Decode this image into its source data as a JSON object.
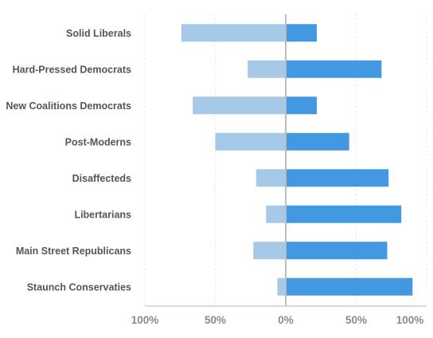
{
  "chart_data": {
    "type": "bar",
    "orientation": "horizontal-diverging",
    "categories": [
      "Solid Liberals",
      "Hard-Pressed Democrats",
      "New Coalitions Democrats",
      "Post-Moderns",
      "Disaffecteds",
      "Libertarians",
      "Main Street Republicans",
      "Staunch Conservaties"
    ],
    "series": [
      {
        "values": [
          -74,
          -27,
          -66,
          -50,
          -21,
          -14,
          -23,
          -6
        ]
      },
      {
        "values": [
          22,
          68,
          22,
          45,
          73,
          82,
          72,
          90
        ]
      }
    ],
    "xlim": [
      -100,
      100
    ],
    "x_ticks": [
      -100,
      -50,
      0,
      50,
      100
    ],
    "x_tick_labels": [
      "100%",
      "50%",
      "0%",
      "50%",
      "100%"
    ],
    "grid": "vertical dotted",
    "title": "",
    "xlabel": "",
    "ylabel": "",
    "colors": {
      "negative": "#a7c9e8",
      "positive": "#4299e1",
      "zero_line": "#bdbdbd",
      "axis": "#cfcfcf",
      "grid": "#dddddd"
    }
  }
}
